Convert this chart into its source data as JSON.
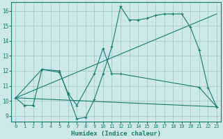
{
  "xlabel": "Humidex (Indice chaleur)",
  "bg_color": "#cce8e8",
  "grid_color": "#aacfcf",
  "line_color": "#1a7a6e",
  "xlim": [
    -0.5,
    23.5
  ],
  "ylim": [
    8.6,
    16.6
  ],
  "xticks": [
    0,
    1,
    2,
    3,
    4,
    5,
    6,
    7,
    8,
    9,
    10,
    11,
    12,
    13,
    14,
    15,
    16,
    17,
    18,
    19,
    20,
    21,
    22,
    23
  ],
  "yticks": [
    9,
    10,
    11,
    12,
    13,
    14,
    15,
    16
  ],
  "line1_x": [
    0,
    1,
    2,
    3,
    5,
    6,
    7,
    8,
    9,
    10,
    11,
    12,
    13,
    14,
    15,
    16,
    17,
    18,
    19,
    20,
    21,
    22,
    23
  ],
  "line1_y": [
    10.2,
    9.7,
    9.7,
    12.1,
    12.0,
    10.4,
    8.8,
    8.9,
    10.1,
    11.8,
    13.6,
    16.3,
    15.4,
    15.4,
    15.5,
    15.7,
    15.8,
    15.8,
    15.8,
    14.9,
    13.4,
    10.9,
    9.6
  ],
  "line2_x": [
    0,
    3,
    5,
    6,
    7,
    9,
    10,
    11,
    12,
    21,
    23
  ],
  "line2_y": [
    10.2,
    12.1,
    11.9,
    10.5,
    9.7,
    11.8,
    13.5,
    11.8,
    11.8,
    10.9,
    9.6
  ],
  "line3_x": [
    0,
    23
  ],
  "line3_y": [
    10.2,
    9.6
  ],
  "line4_x": [
    0,
    23
  ],
  "line4_y": [
    10.2,
    15.8
  ]
}
